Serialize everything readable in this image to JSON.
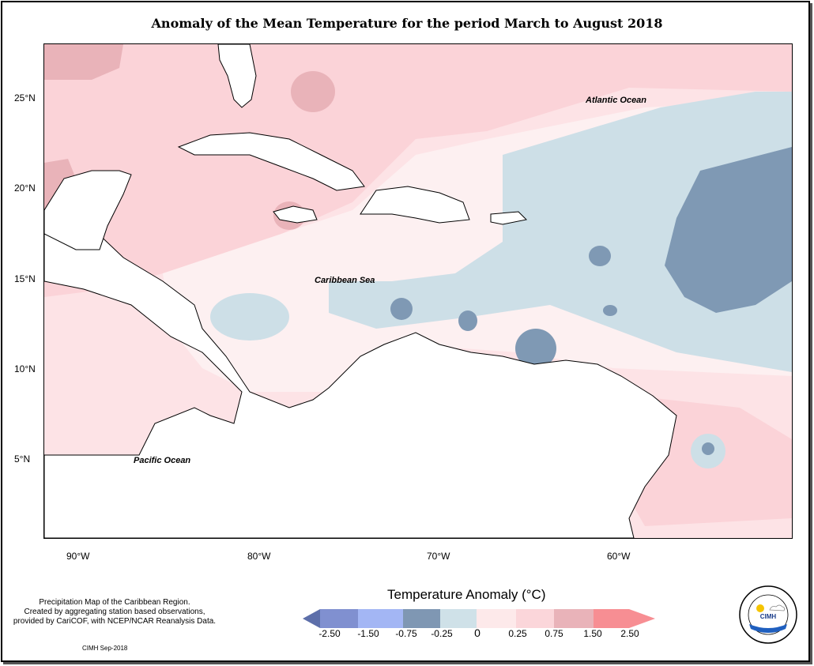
{
  "title": "Anomaly of the Mean Temperature for the period March to August 2018",
  "map": {
    "lat_ticks": [
      "25°N",
      "20°N",
      "15°N",
      "10°N",
      "5°N"
    ],
    "lon_ticks": [
      "90°W",
      "80°W",
      "70°W",
      "60°W"
    ],
    "labels": {
      "atlantic": "Atlantic Ocean",
      "caribbean": "Caribbean Sea",
      "pacific": "Pacific Ocean"
    }
  },
  "legend": {
    "title": "Temperature Anomaly (°C)",
    "ticks": [
      "-2.50",
      "-1.50",
      "-0.75",
      "-0.25",
      "0",
      "0.25",
      "0.75",
      "1.50",
      "2.50"
    ],
    "colors": [
      "#5d6faa",
      "#8090d0",
      "#a3b6f4",
      "#7f97b3",
      "#cfe1e8",
      "#fde9ea",
      "#fbd6da",
      "#e9b3b9",
      "#f78e93"
    ]
  },
  "note": {
    "line1": "Precipitation Map of the Caribbean Region.",
    "line2": "Created by aggregating station based observations,",
    "line3": "provided by CariCOF, with NCEP/NCAR Reanalysis Data."
  },
  "credit": "CIMH Sep-2018",
  "logo": {
    "ring_text": "Caribbean Institute for Meteorology and Hydrology",
    "name": "CIMH"
  }
}
